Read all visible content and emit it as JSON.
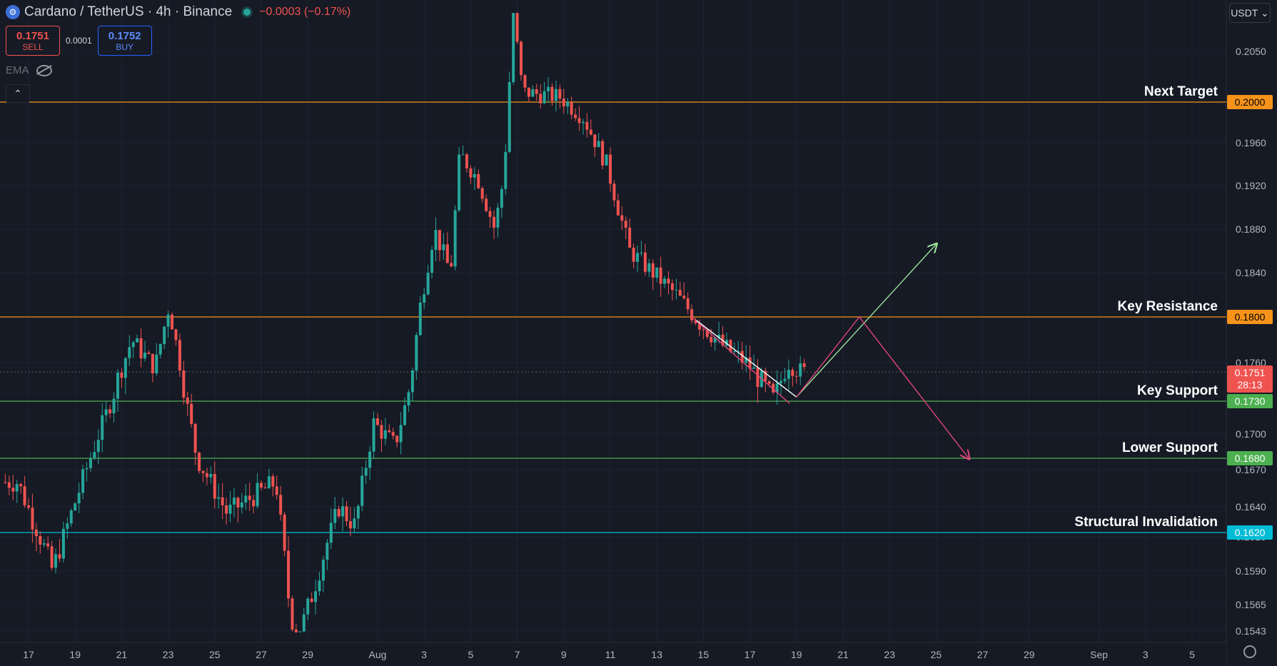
{
  "header": {
    "logo_icon": "cardano-logo-icon",
    "title": "Cardano / TetherUS · 4h · Binance",
    "change": "−0.0003 (−0.17%)"
  },
  "trade": {
    "sell_price": "0.1751",
    "sell_label": "SELL",
    "spread": "0.0001",
    "buy_price": "0.1752",
    "buy_label": "BUY"
  },
  "indicator": {
    "name": "EMA",
    "visibility_icon": "eye-off-icon"
  },
  "currency_selector": "USDT ⌄",
  "colors": {
    "background": "#161a25",
    "grid": "#1f2330",
    "up": "#26a69a",
    "down": "#ef5350",
    "orange": "#f7931a",
    "green": "#4caf50",
    "cyan": "#00bcd4",
    "pink": "#e0457b",
    "light_green": "#9be39b"
  },
  "chart_data": {
    "type": "candlestick",
    "title": "Cardano / TetherUS · 4h · Binance",
    "x_ticks": [
      {
        "label": "17",
        "day": 17
      },
      {
        "label": "19",
        "day": 19
      },
      {
        "label": "21",
        "day": 21
      },
      {
        "label": "23",
        "day": 23
      },
      {
        "label": "25",
        "day": 25
      },
      {
        "label": "27",
        "day": 27
      },
      {
        "label": "29",
        "day": 29
      },
      {
        "label": "Aug",
        "day": 32
      },
      {
        "label": "3",
        "day": 34
      },
      {
        "label": "5",
        "day": 36
      },
      {
        "label": "7",
        "day": 38
      },
      {
        "label": "9",
        "day": 40
      },
      {
        "label": "11",
        "day": 42
      },
      {
        "label": "13",
        "day": 44
      },
      {
        "label": "15",
        "day": 46
      },
      {
        "label": "17",
        "day": 48
      },
      {
        "label": "19",
        "day": 50
      },
      {
        "label": "21",
        "day": 52
      },
      {
        "label": "23",
        "day": 54
      },
      {
        "label": "25",
        "day": 56
      },
      {
        "label": "27",
        "day": 58
      },
      {
        "label": "29",
        "day": 60
      },
      {
        "label": "Sep",
        "day": 63
      },
      {
        "label": "3",
        "day": 65
      },
      {
        "label": "5",
        "day": 67
      }
    ],
    "y_ticks": [
      "0.2050",
      "0.1960",
      "0.1920",
      "0.1880",
      "0.1840",
      "0.1760",
      "0.1700",
      "0.1670",
      "0.1640",
      "0.1615",
      "0.1590",
      "0.1565",
      "0.1543"
    ],
    "levels": [
      {
        "name": "Next Target",
        "price": 0.2,
        "label": "0.2000",
        "color": "#f7931a"
      },
      {
        "name": "Key Resistance",
        "price": 0.18,
        "label": "0.1800",
        "color": "#f7931a"
      },
      {
        "name": "Key Support",
        "price": 0.173,
        "label": "0.1730",
        "color": "#4caf50"
      },
      {
        "name": "Lower Support",
        "price": 0.168,
        "label": "0.1680",
        "color": "#4caf50"
      },
      {
        "name": "Structural Invalidation",
        "price": 0.162,
        "label": "0.1620",
        "color": "#00bcd4"
      }
    ],
    "current_price": {
      "price": 0.1751,
      "label": "0.1751",
      "countdown": "28:13"
    },
    "key_points": [
      {
        "day": 16.7,
        "price": 0.166
      },
      {
        "day": 18.2,
        "price": 0.159
      },
      {
        "day": 20.0,
        "price": 0.169
      },
      {
        "day": 21.6,
        "price": 0.178
      },
      {
        "day": 22.6,
        "price": 0.1755
      },
      {
        "day": 23.2,
        "price": 0.181
      },
      {
        "day": 24.4,
        "price": 0.168
      },
      {
        "day": 25.7,
        "price": 0.1635
      },
      {
        "day": 27.8,
        "price": 0.166
      },
      {
        "day": 28.4,
        "price": 0.156
      },
      {
        "day": 28.7,
        "price": 0.1535
      },
      {
        "day": 30.5,
        "price": 0.164
      },
      {
        "day": 31.2,
        "price": 0.1625
      },
      {
        "day": 32.0,
        "price": 0.171
      },
      {
        "day": 32.9,
        "price": 0.169
      },
      {
        "day": 33.6,
        "price": 0.1745
      },
      {
        "day": 34.0,
        "price": 0.181
      },
      {
        "day": 34.6,
        "price": 0.188
      },
      {
        "day": 35.3,
        "price": 0.184
      },
      {
        "day": 35.7,
        "price": 0.195
      },
      {
        "day": 36.5,
        "price": 0.1925
      },
      {
        "day": 37.2,
        "price": 0.188
      },
      {
        "day": 37.6,
        "price": 0.193
      },
      {
        "day": 38.0,
        "price": 0.2085
      },
      {
        "day": 38.4,
        "price": 0.201
      },
      {
        "day": 40.0,
        "price": 0.2005
      },
      {
        "day": 41.0,
        "price": 0.1985
      },
      {
        "day": 42.0,
        "price": 0.194
      },
      {
        "day": 43.0,
        "price": 0.186
      },
      {
        "day": 44.0,
        "price": 0.184
      },
      {
        "day": 45.0,
        "price": 0.182
      },
      {
        "day": 46.0,
        "price": 0.1795
      },
      {
        "day": 47.0,
        "price": 0.1775
      },
      {
        "day": 48.0,
        "price": 0.176
      },
      {
        "day": 49.2,
        "price": 0.173
      },
      {
        "day": 49.8,
        "price": 0.176
      },
      {
        "day": 50.4,
        "price": 0.1751
      }
    ],
    "annotations": [
      {
        "kind": "channel",
        "color": "#e0457b",
        "points": [
          [
            45.5,
            0.18
          ],
          [
            49.7,
            0.1728
          ]
        ]
      },
      {
        "kind": "channel",
        "color": "#ffffff",
        "points": [
          [
            45.7,
            0.1797
          ],
          [
            50.0,
            0.1733
          ]
        ]
      },
      {
        "kind": "path",
        "color": "#9be39b",
        "arrow": true,
        "points": [
          [
            50.0,
            0.1733
          ],
          [
            56.0,
            0.1866
          ]
        ]
      },
      {
        "kind": "path",
        "color": "#e0457b",
        "arrow": true,
        "points": [
          [
            50.0,
            0.1733
          ],
          [
            52.7,
            0.18
          ],
          [
            57.4,
            0.168
          ]
        ]
      }
    ]
  }
}
